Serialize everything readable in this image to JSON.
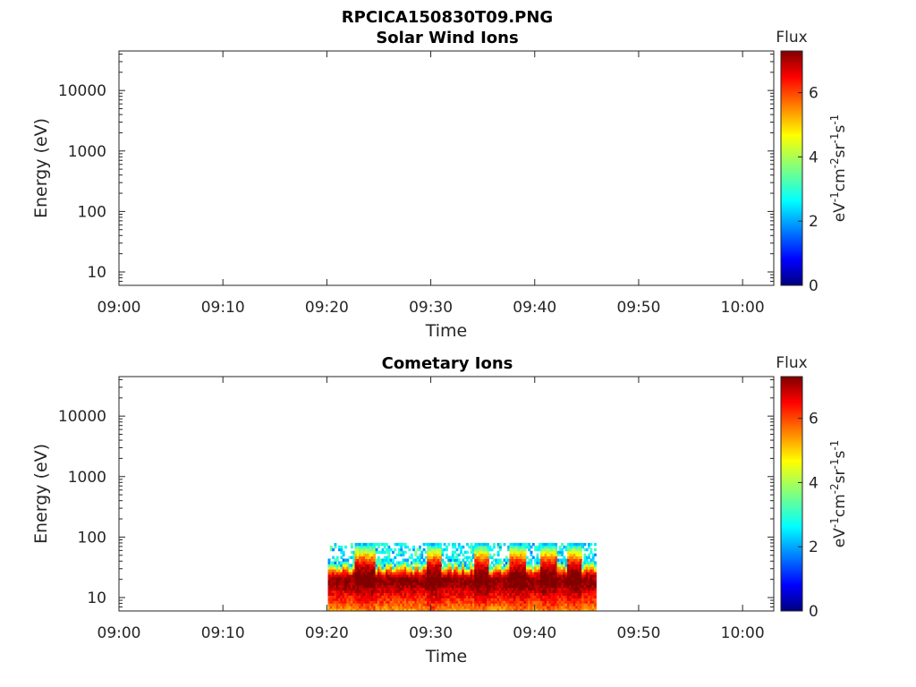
{
  "chart_data": [
    {
      "type": "heatmap",
      "suptitle": "RPCICA150830T09.PNG",
      "title": "Solar Wind Ions",
      "xlabel": "Time",
      "ylabel": "Energy (eV)",
      "x_ticks": [
        "09:00",
        "09:10",
        "09:20",
        "09:30",
        "09:40",
        "09:50",
        "10:00"
      ],
      "x_range_minutes": [
        0,
        63
      ],
      "y_scale": "log",
      "y_ticks": [
        10,
        100,
        1000,
        10000
      ],
      "y_tick_labels": [
        "10",
        "100",
        "1000",
        "10000"
      ],
      "y_range": [
        6,
        45000
      ],
      "colorbar": {
        "title": "Flux",
        "label": "eV-1 cm-2 sr-1 s-1",
        "ticks": [
          "0",
          "2",
          "4",
          "6"
        ],
        "range": [
          0,
          7.3
        ],
        "colormap": "jet"
      },
      "data": []
    },
    {
      "type": "heatmap",
      "title": "Cometary Ions",
      "xlabel": "Time",
      "ylabel": "Energy (eV)",
      "x_ticks": [
        "09:00",
        "09:10",
        "09:20",
        "09:30",
        "09:40",
        "09:50",
        "10:00"
      ],
      "x_range_minutes": [
        0,
        63
      ],
      "y_scale": "log",
      "y_ticks": [
        10,
        100,
        1000,
        10000
      ],
      "y_tick_labels": [
        "10",
        "100",
        "1000",
        "10000"
      ],
      "y_range": [
        6,
        45000
      ],
      "colorbar": {
        "title": "Flux",
        "label": "eV-1 cm-2 sr-1 s-1",
        "ticks": [
          "0",
          "2",
          "4",
          "6"
        ],
        "range": [
          0,
          7.3
        ],
        "colormap": "jet"
      },
      "data": {
        "time_start_minutes": 20.1,
        "time_end_minutes": 45.9,
        "energy_range": [
          6,
          80
        ],
        "peak_energy": 18,
        "peak_flux": 7.3,
        "high_flux_intervals_minutes": [
          [
            22.5,
            24.5
          ],
          [
            29.5,
            31
          ],
          [
            34,
            35.5
          ],
          [
            37.5,
            39
          ],
          [
            40.5,
            42
          ],
          [
            43,
            44.5
          ]
        ]
      }
    }
  ]
}
